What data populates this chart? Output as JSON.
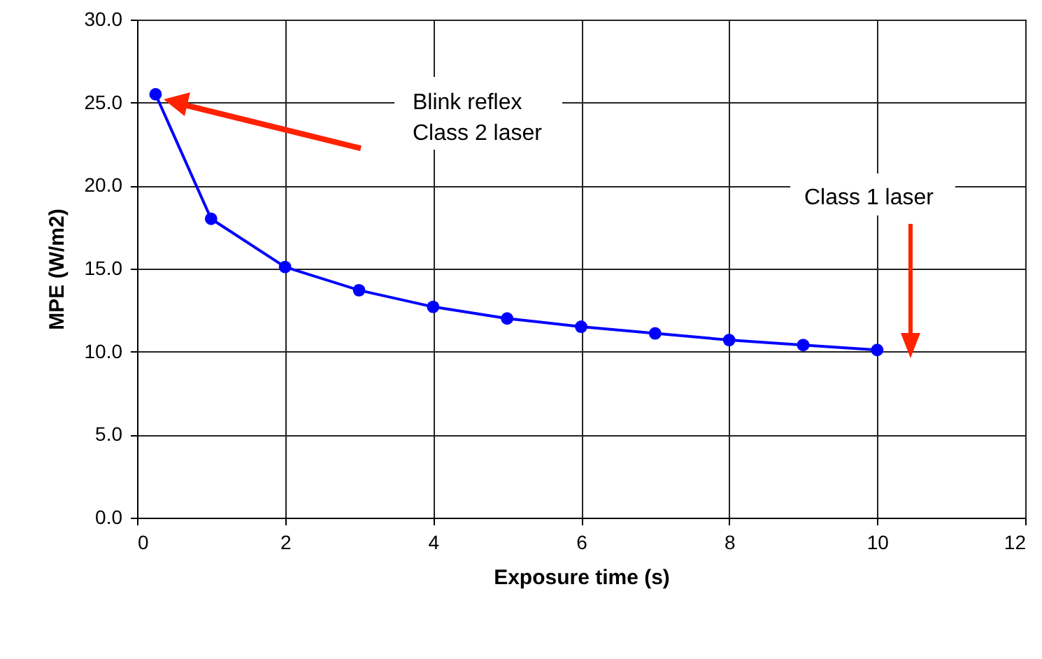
{
  "chart_data": {
    "type": "line",
    "xlabel": "Exposure time (s)",
    "ylabel": "MPE (W/m2)",
    "x": [
      0.25,
      1,
      2,
      3,
      4,
      5,
      6,
      7,
      8,
      9,
      10
    ],
    "series": [
      {
        "color": "#0000ff",
        "values": [
          25.5,
          18.0,
          15.1,
          13.7,
          12.7,
          12.0,
          11.5,
          11.1,
          10.7,
          10.4,
          10.1
        ]
      }
    ],
    "xlim": [
      0,
      12
    ],
    "xticks": [
      0,
      2,
      4,
      6,
      8,
      10,
      12
    ],
    "ylim": [
      0,
      30
    ],
    "yticks": [
      {
        "value": 0,
        "label": "0.0"
      },
      {
        "value": 5,
        "label": "5.0"
      },
      {
        "value": 10,
        "label": "10.0"
      },
      {
        "value": 15,
        "label": "15.0"
      },
      {
        "value": 20,
        "label": "20.0"
      },
      {
        "value": 25,
        "label": "25.0"
      },
      {
        "value": 30,
        "label": "30.0"
      }
    ],
    "grid": true,
    "marker": "circle",
    "line_style": "solid",
    "annotations": [
      "Blink reflex\nClass 2 laser",
      "Class 1 laser"
    ]
  }
}
